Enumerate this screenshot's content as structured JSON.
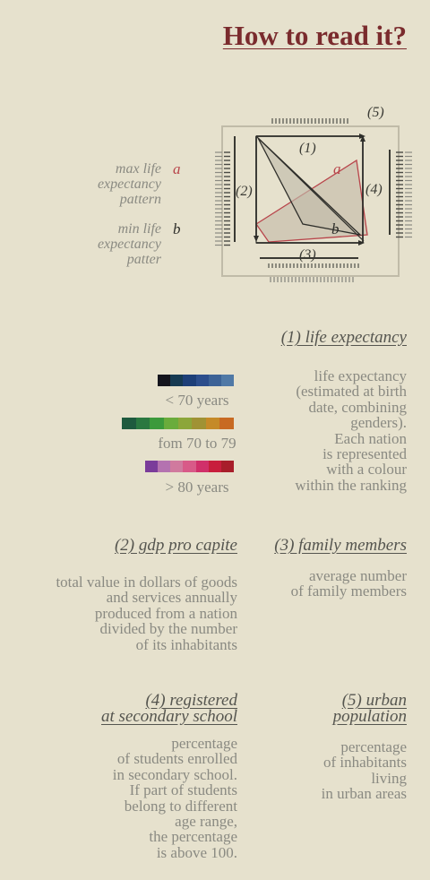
{
  "title": "How to read it?",
  "legend": {
    "max_label": "max life\nexpectancy\npattern",
    "max_letter": "a",
    "min_label": "min life\nexpectancy\npatter",
    "min_letter": "b"
  },
  "diagram": {
    "labels": {
      "one": "(1)",
      "two": "(2)",
      "three": "(3)",
      "four": "(4)",
      "five": "(5)",
      "a": "a",
      "b": "b"
    },
    "colors": {
      "max_pattern": "#b8444a",
      "min_pattern": "#2e2e2a",
      "fill": "#c9c0ae"
    }
  },
  "sections": {
    "life_expectancy": {
      "heading": "(1) life expectancy",
      "description": "life expectancy\n(estimated at birth\ndate, combining\ngenders).\nEach nation\nis represented\nwith a colour\nwithin the ranking",
      "scales": [
        {
          "label": "< 70 years",
          "colors": [
            "#14141c",
            "#163a52",
            "#1d3f78",
            "#2c4e8c",
            "#3c6296",
            "#5079a6"
          ]
        },
        {
          "label": "fom 70 to 79",
          "colors": [
            "#1e5a3e",
            "#2a7840",
            "#3c9a3c",
            "#6aac3c",
            "#8ca63a",
            "#a09234",
            "#c58a28",
            "#c86a22"
          ]
        },
        {
          "label": "> 80 years",
          "colors": [
            "#7a3c9a",
            "#b472b0",
            "#d07a9e",
            "#d85a88",
            "#d0306a",
            "#c81e3c",
            "#a81e2a"
          ]
        }
      ]
    },
    "gdp": {
      "heading": "(2) gdp pro capite",
      "description": "total value in dollars of goods\nand services annually\nproduced from a nation\ndivided by the number\nof its inhabitants"
    },
    "family": {
      "heading": "(3) family members",
      "description": "average number\nof family members"
    },
    "secondary": {
      "heading": "(4) registered\nat secondary school",
      "description": "percentage\nof students enrolled\nin secondary school.\nIf part of students\nbelong to different\nage range,\nthe percentage\nis above 100."
    },
    "urban": {
      "heading": "(5) urban\npopulation",
      "description": "percentage\nof inhabitants\nliving\nin urban areas"
    }
  }
}
